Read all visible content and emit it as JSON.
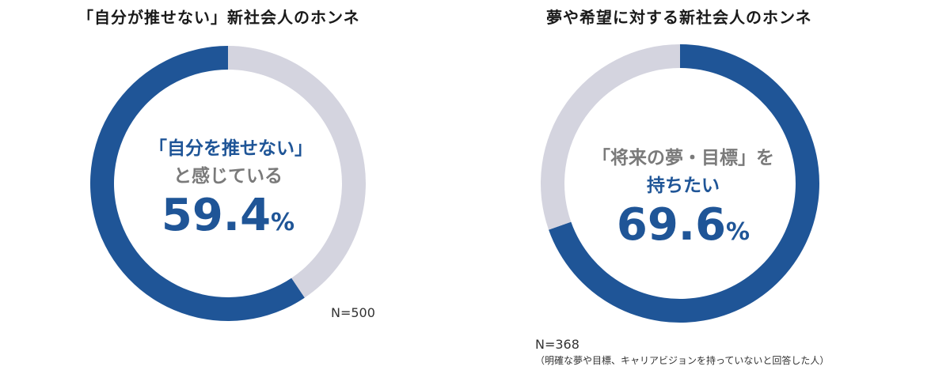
{
  "chart_data": [
    {
      "type": "pie",
      "title": "「自分が推せない」新社会人のホンネ",
      "categories": [
        "「自分を推せない」と感じている",
        ""
      ],
      "values": [
        59.4,
        40.6
      ],
      "center": {
        "line1": "「自分を推せない」",
        "line2": "と感じている",
        "value": "59.4",
        "unit": "%"
      },
      "sample": "N=500",
      "colors": {
        "highlight": "#1f5597",
        "rest": "#d4d4df"
      }
    },
    {
      "type": "pie",
      "title": "夢や希望に対する新社会人のホンネ",
      "categories": [
        "「将来の夢・目標」を持ちたい",
        ""
      ],
      "values": [
        69.6,
        30.4
      ],
      "center": {
        "line1": "「将来の夢・目標」を",
        "line2": "持ちたい",
        "value": "69.6",
        "unit": "%"
      },
      "sample": "N=368",
      "footnote": "（明確な夢や目標、キャリアビジョンを持っていないと回答した人）",
      "colors": {
        "highlight": "#1f5597",
        "rest": "#d4d4df"
      }
    }
  ]
}
